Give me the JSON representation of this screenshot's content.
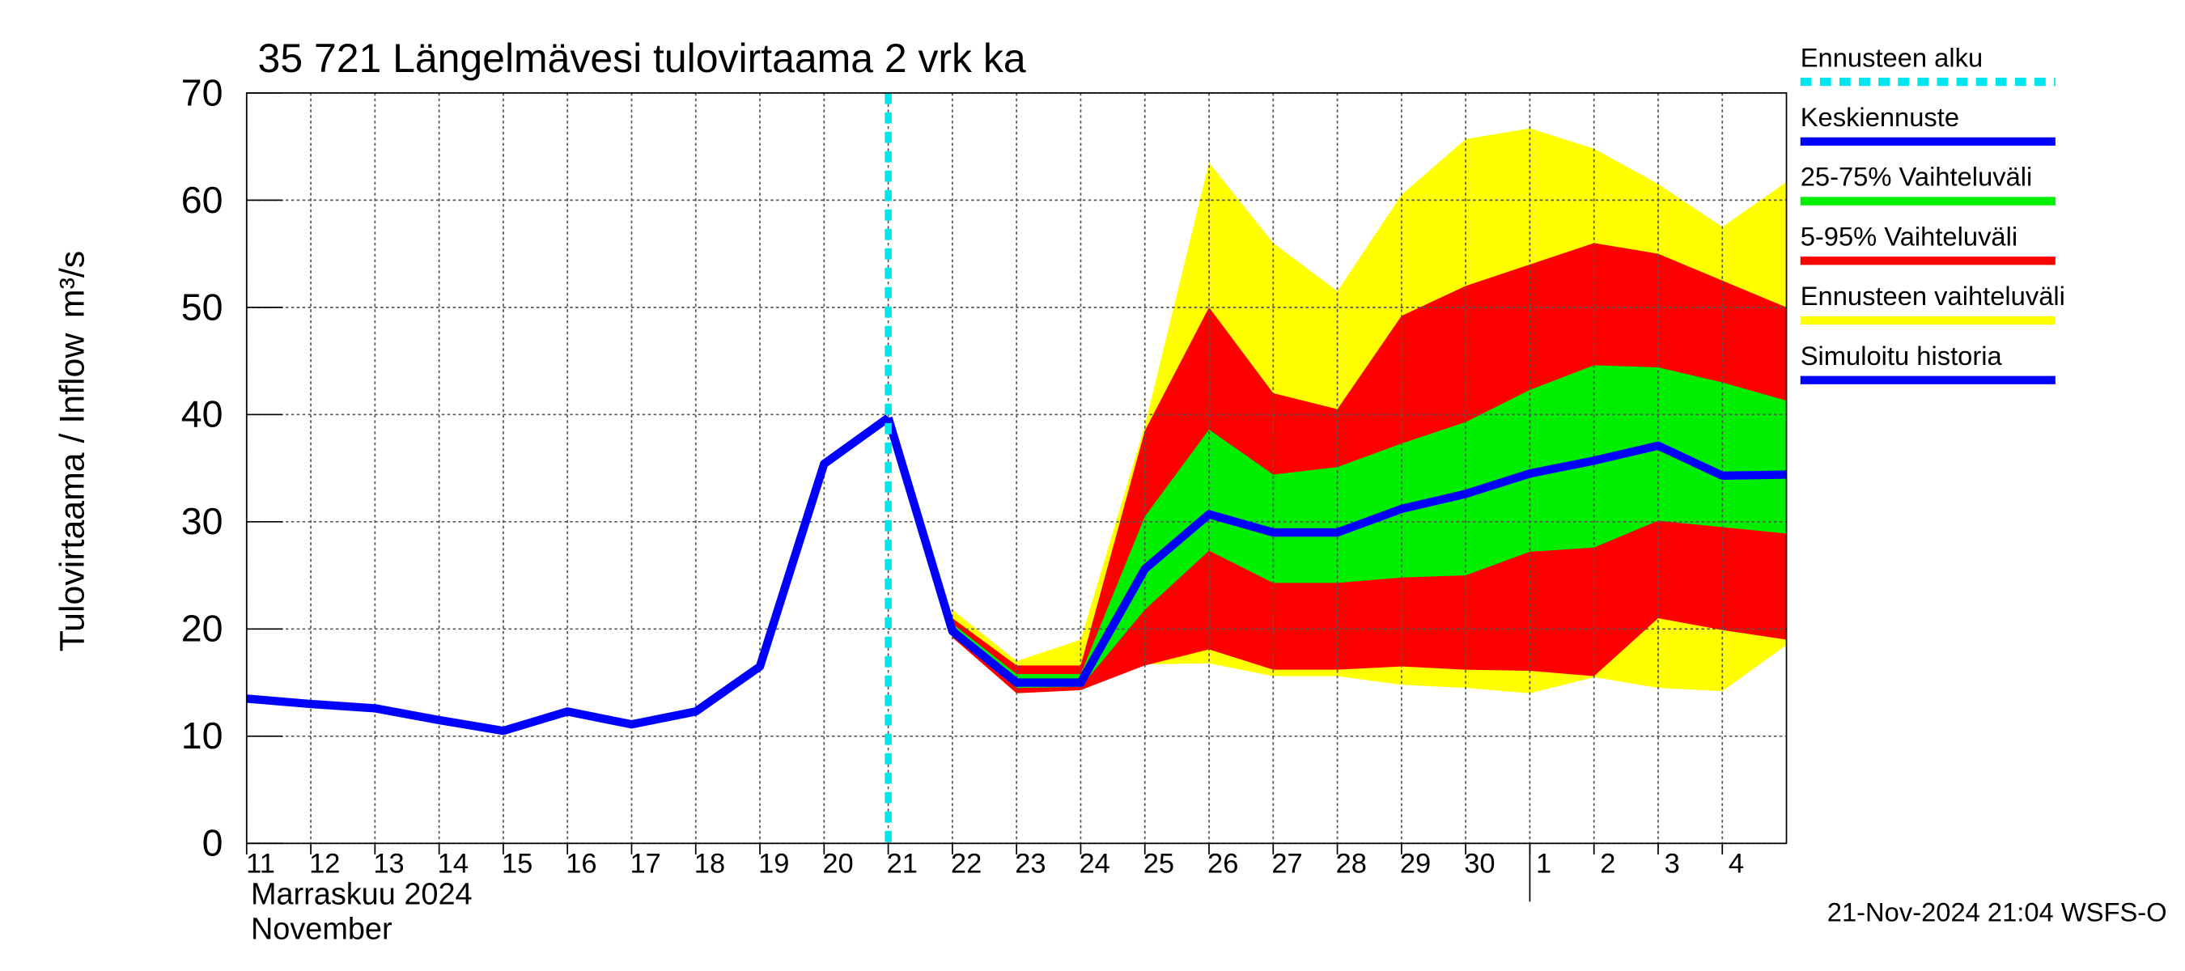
{
  "chart_data": {
    "type": "line",
    "title": "35 721 Längelmävesi tulovirtaama 2 vrk ka",
    "ylabel": "Tulovirtaama / Inflow",
    "yunit": "m³/s",
    "month_labels": [
      "Marraskuu 2024",
      "November"
    ],
    "footer": "21-Nov-2024 21:04 WSFS-O",
    "xlim": [
      0,
      24
    ],
    "ylim": [
      0,
      70
    ],
    "yticks": [
      0,
      10,
      20,
      30,
      40,
      50,
      60,
      70
    ],
    "xticks": [
      {
        "value": 0,
        "label": "11"
      },
      {
        "value": 1,
        "label": "12"
      },
      {
        "value": 2,
        "label": "13"
      },
      {
        "value": 3,
        "label": "14"
      },
      {
        "value": 4,
        "label": "15"
      },
      {
        "value": 5,
        "label": "16"
      },
      {
        "value": 6,
        "label": "17"
      },
      {
        "value": 7,
        "label": "18"
      },
      {
        "value": 8,
        "label": "19"
      },
      {
        "value": 9,
        "label": "20"
      },
      {
        "value": 10,
        "label": "21"
      },
      {
        "value": 11,
        "label": "22"
      },
      {
        "value": 12,
        "label": "23"
      },
      {
        "value": 13,
        "label": "24"
      },
      {
        "value": 14,
        "label": "25"
      },
      {
        "value": 15,
        "label": "26"
      },
      {
        "value": 16,
        "label": "27"
      },
      {
        "value": 17,
        "label": "28"
      },
      {
        "value": 18,
        "label": "29"
      },
      {
        "value": 19,
        "label": "30"
      },
      {
        "value": 20,
        "label": "1"
      },
      {
        "value": 21,
        "label": "2"
      },
      {
        "value": 22,
        "label": "3"
      },
      {
        "value": 23,
        "label": "4"
      }
    ],
    "month_separator_x": 20,
    "grid": true,
    "forecast_start": {
      "name": "Ennusteen alku",
      "x": 10,
      "color": "#00e5ee"
    },
    "bands": [
      {
        "name": "Ennusteen vaihteluväli",
        "color": "#ffff00",
        "x": [
          11,
          12,
          13,
          14,
          15,
          16,
          17,
          18,
          19,
          20,
          21,
          22,
          23,
          24
        ],
        "low": [
          19.2,
          14,
          14.3,
          16.7,
          16.8,
          15.6,
          15.6,
          14.8,
          14.5,
          14,
          15.5,
          14.5,
          14.2,
          18.5
        ],
        "high": [
          21.8,
          17,
          19,
          39,
          63.5,
          56,
          51.5,
          60.5,
          65.7,
          66.7,
          64.8,
          61.5,
          57.5,
          61.7
        ]
      },
      {
        "name": "5-95% Vaihteluväli",
        "color": "#ff0000",
        "x": [
          11,
          12,
          13,
          14,
          15,
          16,
          17,
          18,
          19,
          20,
          21,
          22,
          23,
          24
        ],
        "low": [
          19.2,
          14,
          14.3,
          16.6,
          18.1,
          16.2,
          16.2,
          16.5,
          16.2,
          16.1,
          15.6,
          21,
          19.9,
          19
        ],
        "high": [
          21,
          16.6,
          16.6,
          38.5,
          50,
          42,
          40.5,
          49.2,
          52,
          54,
          56,
          55,
          52.5,
          50
        ]
      },
      {
        "name": "25-75% Vaihteluväli",
        "color": "#00ee00",
        "x": [
          11,
          12,
          13,
          14,
          15,
          16,
          17,
          18,
          19,
          20,
          21,
          22,
          23,
          24
        ],
        "low": [
          19.5,
          14.5,
          14.6,
          21.8,
          27.3,
          24.3,
          24.3,
          24.8,
          25,
          27.2,
          27.6,
          30.1,
          29.5,
          28.9
        ],
        "high": [
          20.5,
          15.8,
          15.8,
          30.5,
          38.6,
          34.4,
          35.1,
          37.3,
          39.3,
          42.3,
          44.6,
          44.4,
          43,
          41.3
        ]
      }
    ],
    "series": [
      {
        "name": "Keskiennuste",
        "color": "#0000ff",
        "x": [
          10,
          11,
          12,
          13,
          14,
          15,
          16,
          17,
          18,
          19,
          20,
          21,
          22,
          23,
          24
        ],
        "values": [
          39.7,
          19.8,
          15,
          15,
          25.6,
          30.7,
          29,
          29,
          31.2,
          32.6,
          34.5,
          35.7,
          37.1,
          34.3,
          34.4
        ]
      },
      {
        "name": "Simuloitu historia",
        "color": "#0000ff",
        "x": [
          0,
          1,
          2,
          3,
          4,
          5,
          6,
          7,
          8,
          9,
          10
        ],
        "values": [
          13.5,
          13,
          12.6,
          11.5,
          10.5,
          12.3,
          11.1,
          12.3,
          16.5,
          35.4,
          39.7
        ]
      }
    ],
    "legend": [
      "forecast_start",
      "series.0",
      "bands.2",
      "bands.1",
      "bands.0",
      "series.1"
    ]
  }
}
